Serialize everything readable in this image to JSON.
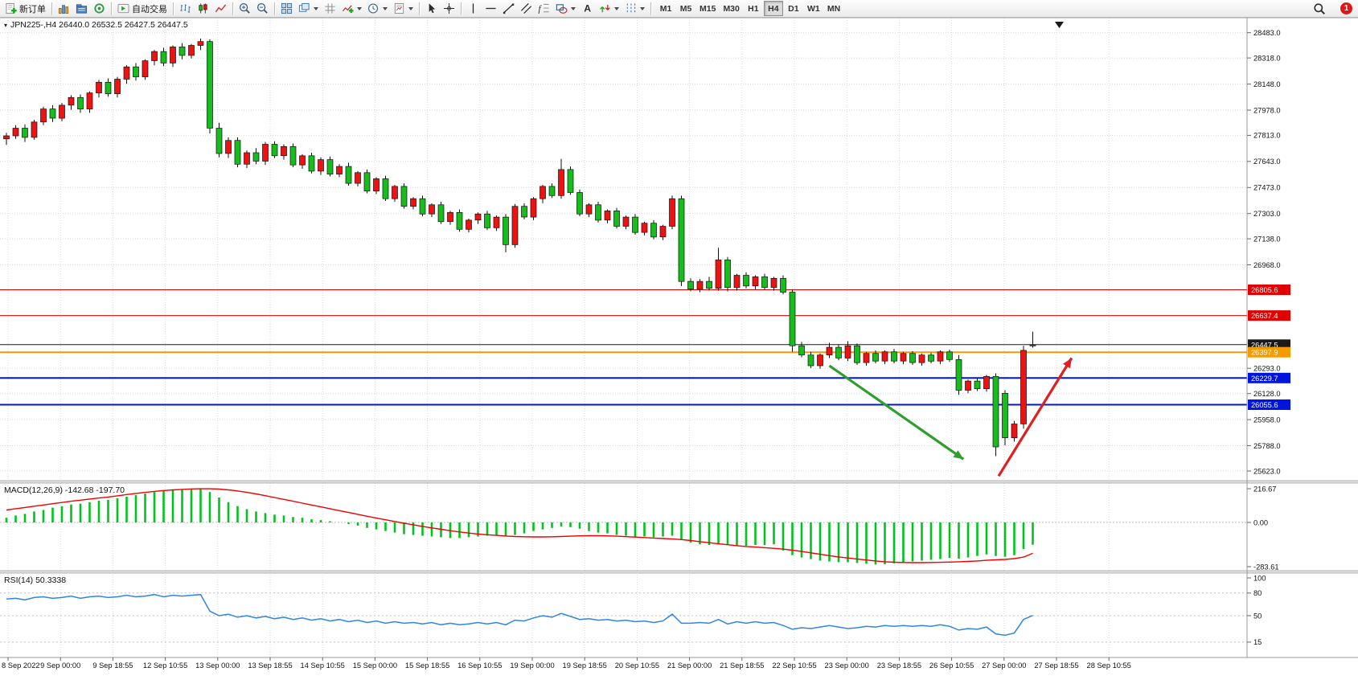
{
  "toolbar": {
    "new_order_label": "新订单",
    "auto_trading_label": "自动交易",
    "timeframes": [
      "M1",
      "M5",
      "M15",
      "M30",
      "H1",
      "H4",
      "D1",
      "W1",
      "MN"
    ],
    "active_timeframe": "H4",
    "notification_badge": "1"
  },
  "chart": {
    "title": "JPN225-,H4  26440.0 26532.5 26427.5 26447.5",
    "macd_label": "MACD(12,26,9) -142.68 -197.70",
    "rsi_label": "RSI(14) 50.3338"
  },
  "price_axis": {
    "ticks": [
      "28483.0",
      "28318.0",
      "28148.0",
      "27978.0",
      "27813.0",
      "27643.0",
      "27473.0",
      "27303.0",
      "27138.0",
      "26968.0",
      "26293.0",
      "26128.0",
      "25958.0",
      "25788.0",
      "25623.0"
    ],
    "lines": [
      {
        "price": 26805.6,
        "label": "26805.6",
        "color": "#e00000",
        "width": 1,
        "kind": "resistance"
      },
      {
        "price": 26637.4,
        "label": "26637.4",
        "color": "#e00000",
        "width": 1,
        "kind": "resistance"
      },
      {
        "price": 26447.5,
        "label": "26447.5",
        "color": "#1a1a1a",
        "width": 1,
        "kind": "bid"
      },
      {
        "price": 26397.9,
        "label": "26397.9",
        "color": "#f59b00",
        "width": 2,
        "kind": "level"
      },
      {
        "price": 26229.7,
        "label": "26229.7",
        "color": "#0014e0",
        "width": 2,
        "kind": "support"
      },
      {
        "price": 26055.6,
        "label": "26055.6",
        "color": "#0014e0",
        "width": 2,
        "kind": "support"
      }
    ]
  },
  "chart_data": {
    "type": "candlestick",
    "symbol": "JPN225-",
    "period": "H4",
    "price_range": [
      25560,
      28560
    ],
    "colors": {
      "bull": "#ef1212",
      "bear": "#17bd1d",
      "wick": "#111111",
      "macd_hist": "#00c41e",
      "macd_signal": "#f00000",
      "rsi": "#2f86e0",
      "grid": "#dadada"
    },
    "candles": [
      [
        27790,
        27830,
        27750,
        27810
      ],
      [
        27810,
        27880,
        27790,
        27860
      ],
      [
        27860,
        27885,
        27770,
        27800
      ],
      [
        27800,
        27915,
        27785,
        27900
      ],
      [
        27900,
        28000,
        27880,
        27985
      ],
      [
        27985,
        28010,
        27900,
        27925
      ],
      [
        27925,
        28025,
        27905,
        28010
      ],
      [
        28010,
        28075,
        27980,
        28060
      ],
      [
        28060,
        28080,
        27960,
        27985
      ],
      [
        27985,
        28100,
        27960,
        28090
      ],
      [
        28090,
        28175,
        28060,
        28160
      ],
      [
        28160,
        28185,
        28065,
        28085
      ],
      [
        28085,
        28195,
        28060,
        28180
      ],
      [
        28180,
        28270,
        28150,
        28260
      ],
      [
        28260,
        28285,
        28170,
        28195
      ],
      [
        28195,
        28310,
        28175,
        28300
      ],
      [
        28300,
        28370,
        28270,
        28360
      ],
      [
        28360,
        28385,
        28265,
        28285
      ],
      [
        28285,
        28400,
        28260,
        28390
      ],
      [
        28390,
        28415,
        28310,
        28335
      ],
      [
        28335,
        28410,
        28315,
        28400
      ],
      [
        28400,
        28445,
        28370,
        28425
      ],
      [
        28425,
        28440,
        27825,
        27860
      ],
      [
        27860,
        27895,
        27670,
        27695
      ],
      [
        27695,
        27800,
        27665,
        27780
      ],
      [
        27780,
        27800,
        27605,
        27625
      ],
      [
        27625,
        27715,
        27600,
        27700
      ],
      [
        27700,
        27730,
        27625,
        27645
      ],
      [
        27645,
        27770,
        27620,
        27755
      ],
      [
        27755,
        27775,
        27665,
        27680
      ],
      [
        27680,
        27755,
        27655,
        27740
      ],
      [
        27740,
        27760,
        27605,
        27620
      ],
      [
        27620,
        27690,
        27595,
        27680
      ],
      [
        27680,
        27700,
        27565,
        27580
      ],
      [
        27580,
        27670,
        27555,
        27655
      ],
      [
        27655,
        27675,
        27545,
        27560
      ],
      [
        27560,
        27625,
        27540,
        27610
      ],
      [
        27610,
        27635,
        27485,
        27500
      ],
      [
        27500,
        27580,
        27480,
        27570
      ],
      [
        27570,
        27590,
        27435,
        27450
      ],
      [
        27450,
        27540,
        27430,
        27530
      ],
      [
        27530,
        27550,
        27385,
        27400
      ],
      [
        27400,
        27490,
        27380,
        27480
      ],
      [
        27480,
        27500,
        27335,
        27350
      ],
      [
        27350,
        27410,
        27330,
        27400
      ],
      [
        27400,
        27420,
        27285,
        27300
      ],
      [
        27300,
        27370,
        27280,
        27360
      ],
      [
        27360,
        27380,
        27235,
        27250
      ],
      [
        27250,
        27320,
        27230,
        27310
      ],
      [
        27310,
        27330,
        27185,
        27200
      ],
      [
        27200,
        27270,
        27180,
        27260
      ],
      [
        27260,
        27310,
        27235,
        27300
      ],
      [
        27300,
        27320,
        27195,
        27210
      ],
      [
        27210,
        27290,
        27190,
        27280
      ],
      [
        27280,
        27300,
        27050,
        27100
      ],
      [
        27100,
        27365,
        27080,
        27350
      ],
      [
        27350,
        27370,
        27265,
        27280
      ],
      [
        27280,
        27410,
        27260,
        27400
      ],
      [
        27400,
        27490,
        27370,
        27480
      ],
      [
        27480,
        27500,
        27405,
        27420
      ],
      [
        27420,
        27660,
        27400,
        27590
      ],
      [
        27590,
        27610,
        27425,
        27440
      ],
      [
        27440,
        27460,
        27285,
        27300
      ],
      [
        27300,
        27370,
        27280,
        27360
      ],
      [
        27360,
        27380,
        27245,
        27260
      ],
      [
        27260,
        27330,
        27240,
        27320
      ],
      [
        27320,
        27340,
        27205,
        27220
      ],
      [
        27220,
        27290,
        27200,
        27280
      ],
      [
        27280,
        27300,
        27165,
        27180
      ],
      [
        27180,
        27250,
        27160,
        27240
      ],
      [
        27240,
        27260,
        27135,
        27150
      ],
      [
        27150,
        27230,
        27130,
        27220
      ],
      [
        27220,
        27420,
        27200,
        27400
      ],
      [
        27400,
        27420,
        26830,
        26860
      ],
      [
        26860,
        26880,
        26795,
        26810
      ],
      [
        26810,
        26875,
        26790,
        26860
      ],
      [
        26860,
        26890,
        26800,
        26815
      ],
      [
        26815,
        27080,
        26800,
        27000
      ],
      [
        27000,
        27020,
        26795,
        26820
      ],
      [
        26820,
        26910,
        26800,
        26900
      ],
      [
        26900,
        26920,
        26815,
        26830
      ],
      [
        26830,
        26900,
        26810,
        26890
      ],
      [
        26890,
        26910,
        26805,
        26820
      ],
      [
        26820,
        26890,
        26800,
        26880
      ],
      [
        26880,
        26900,
        26775,
        26790
      ],
      [
        26790,
        26810,
        26400,
        26440
      ],
      [
        26440,
        26465,
        26365,
        26380
      ],
      [
        26380,
        26400,
        26295,
        26310
      ],
      [
        26310,
        26390,
        26290,
        26380
      ],
      [
        26380,
        26460,
        26360,
        26430
      ],
      [
        26430,
        26450,
        26345,
        26360
      ],
      [
        26360,
        26470,
        26340,
        26440
      ],
      [
        26440,
        26455,
        26315,
        26330
      ],
      [
        26330,
        26400,
        26310,
        26390
      ],
      [
        26390,
        26410,
        26325,
        26340
      ],
      [
        26340,
        26410,
        26320,
        26400
      ],
      [
        26400,
        26420,
        26325,
        26340
      ],
      [
        26340,
        26400,
        26320,
        26390
      ],
      [
        26390,
        26405,
        26315,
        26330
      ],
      [
        26330,
        26390,
        26310,
        26380
      ],
      [
        26380,
        26395,
        26325,
        26340
      ],
      [
        26340,
        26410,
        26320,
        26400
      ],
      [
        26400,
        26415,
        26335,
        26350
      ],
      [
        26350,
        26380,
        26120,
        26150
      ],
      [
        26150,
        26220,
        26130,
        26210
      ],
      [
        26210,
        26230,
        26145,
        26160
      ],
      [
        26160,
        26250,
        26140,
        26240
      ],
      [
        26240,
        26260,
        25720,
        25780
      ],
      [
        26130,
        26150,
        25790,
        25840
      ],
      [
        25840,
        25950,
        25815,
        25930
      ],
      [
        25930,
        26440,
        25900,
        26410
      ],
      [
        26440,
        26532.5,
        26427.5,
        26447.5
      ]
    ],
    "time_labels": [
      "8 Sep 2022",
      "9 Sep 00:00",
      "9 Sep 18:55",
      "12 Sep 10:55",
      "13 Sep 00:00",
      "13 Sep 18:55",
      "14 Sep 10:55",
      "15 Sep 00:00",
      "15 Sep 18:55",
      "16 Sep 10:55",
      "19 Sep 00:00",
      "19 Sep 18:55",
      "20 Sep 10:55",
      "21 Sep 00:00",
      "21 Sep 18:55",
      "22 Sep 10:55",
      "23 Sep 00:00",
      "23 Sep 18:55",
      "26 Sep 10:55",
      "27 Sep 00:00",
      "27 Sep 18:55",
      "28 Sep 10:55"
    ],
    "macd": {
      "histogram": [
        30,
        45,
        55,
        70,
        80,
        95,
        105,
        115,
        120,
        130,
        140,
        145,
        155,
        165,
        175,
        185,
        195,
        205,
        210,
        214,
        216,
        214,
        195,
        160,
        130,
        105,
        85,
        70,
        60,
        50,
        45,
        35,
        30,
        20,
        15,
        8,
        0,
        -10,
        -20,
        -35,
        -45,
        -55,
        -65,
        -75,
        -80,
        -85,
        -90,
        -95,
        -100,
        -100,
        -95,
        -90,
        -85,
        -80,
        -85,
        -80,
        -70,
        -55,
        -45,
        -35,
        -25,
        -30,
        -40,
        -55,
        -65,
        -70,
        -80,
        -85,
        -90,
        -90,
        -95,
        -90,
        -85,
        -110,
        -130,
        -140,
        -145,
        -140,
        -145,
        -150,
        -150,
        -145,
        -145,
        -140,
        -180,
        -210,
        -225,
        -235,
        -245,
        -250,
        -255,
        -255,
        -260,
        -265,
        -270,
        -268,
        -262,
        -255,
        -250,
        -245,
        -240,
        -235,
        -228,
        -232,
        -225,
        -215,
        -205,
        -215,
        -220,
        -210,
        -170,
        -142.68
      ],
      "signal": [
        80,
        88,
        96,
        104,
        112,
        120,
        128,
        136,
        143,
        150,
        157,
        163,
        171,
        179,
        186,
        193,
        199,
        205,
        209,
        212,
        215,
        216,
        216,
        214,
        209,
        202,
        193,
        183,
        172,
        160,
        148,
        136,
        124,
        112,
        100,
        88,
        76,
        64,
        52,
        40,
        28,
        17,
        6,
        -5,
        -15,
        -25,
        -35,
        -44,
        -53,
        -61,
        -68,
        -74,
        -79,
        -83,
        -87,
        -90,
        -92,
        -93,
        -93,
        -92,
        -90,
        -88,
        -86,
        -85,
        -85,
        -86,
        -88,
        -91,
        -94,
        -97,
        -100,
        -103,
        -106,
        -110,
        -116,
        -123,
        -130,
        -137,
        -143,
        -149,
        -154,
        -158,
        -162,
        -166,
        -171,
        -178,
        -186,
        -195,
        -204,
        -213,
        -221,
        -228,
        -235,
        -241,
        -247,
        -252,
        -255,
        -257,
        -258,
        -258,
        -257,
        -256,
        -254,
        -252,
        -250,
        -247,
        -243,
        -240,
        -237,
        -232,
        -222,
        -198
      ],
      "scale": [
        {
          "label": "216.67",
          "value": 216.67
        },
        {
          "label": "0.00",
          "value": 0
        },
        {
          "label": "-283.61",
          "value": -283.61
        }
      ]
    },
    "rsi": {
      "values": [
        72,
        73,
        71,
        74,
        75,
        73,
        74,
        76,
        73,
        75,
        76,
        74,
        75,
        77,
        75,
        76,
        78,
        75,
        77,
        76,
        77,
        78,
        56,
        50,
        52,
        48,
        50,
        47,
        49,
        46,
        48,
        45,
        47,
        44,
        46,
        43,
        45,
        42,
        44,
        41,
        43,
        40,
        42,
        40,
        41,
        39,
        41,
        38,
        40,
        38,
        39,
        41,
        39,
        41,
        38,
        44,
        43,
        47,
        50,
        48,
        53,
        49,
        45,
        46,
        44,
        45,
        43,
        44,
        42,
        43,
        41,
        43,
        52,
        40,
        40,
        41,
        40,
        45,
        39,
        42,
        40,
        42,
        40,
        41,
        37,
        32,
        34,
        33,
        35,
        37,
        35,
        33,
        34,
        36,
        35,
        37,
        36,
        37,
        36,
        37,
        36,
        38,
        36,
        31,
        33,
        32,
        35,
        26,
        24,
        27,
        45,
        50.33
      ],
      "levels": [
        {
          "label": "100",
          "value": 100
        },
        {
          "label": "80",
          "value": 80
        },
        {
          "label": "50",
          "value": 50
        },
        {
          "label": "15",
          "value": 15
        }
      ],
      "dashed": [
        80,
        50,
        15
      ]
    },
    "annotations": [
      {
        "type": "arrow",
        "color": "#2f9e2f",
        "from_bar": 89,
        "from_price": 26310,
        "to_bar": 103.5,
        "to_price": 25700
      },
      {
        "type": "arrow",
        "color": "#e02020",
        "from_bar": 107.3,
        "from_price": 25590,
        "to_bar": 115.2,
        "to_price": 26360
      }
    ]
  }
}
